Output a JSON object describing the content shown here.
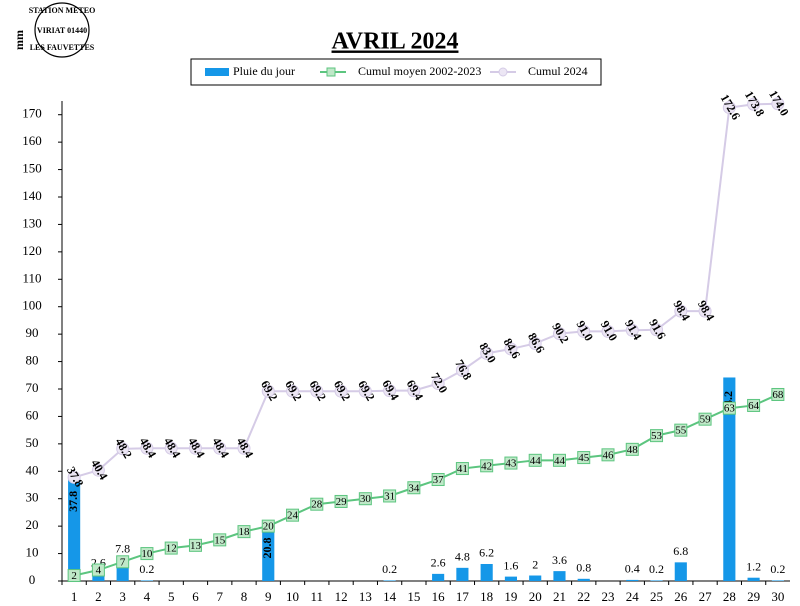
{
  "logo": {
    "lines": [
      "STATION METEO",
      "VIRIAT 01440",
      "LES FAUVETTES"
    ]
  },
  "chart_data": {
    "type": "bar-line",
    "title": "AVRIL 2024",
    "y_label": "mm",
    "categories": [
      "1",
      "2",
      "3",
      "4",
      "5",
      "6",
      "7",
      "8",
      "9",
      "10",
      "11",
      "12",
      "13",
      "14",
      "15",
      "16",
      "17",
      "18",
      "19",
      "20",
      "21",
      "22",
      "23",
      "24",
      "25",
      "26",
      "27",
      "28",
      "29",
      "30"
    ],
    "ylim": [
      0,
      175
    ],
    "yticks": [
      0,
      10,
      20,
      30,
      40,
      50,
      60,
      70,
      80,
      90,
      100,
      110,
      120,
      130,
      140,
      150,
      160,
      170
    ],
    "legend": "top",
    "series": [
      {
        "name": "Pluie du jour",
        "type": "bar",
        "color": "#1597e8",
        "values": [
          37.8,
          2.6,
          7.8,
          0.2,
          null,
          null,
          null,
          null,
          20.8,
          null,
          null,
          null,
          null,
          0.2,
          null,
          2.6,
          4.8,
          6.2,
          1.6,
          2,
          3.6,
          0.8,
          null,
          0.4,
          0.2,
          6.8,
          null,
          74.2,
          1.2,
          0.2
        ]
      },
      {
        "name": "Cumul moyen 2002-2023",
        "type": "line",
        "color": "#5cc57f",
        "marker": "square",
        "marker_fill": "#bfe8c8",
        "values": [
          2,
          4,
          7,
          10,
          12,
          13,
          15,
          18,
          20,
          24,
          28,
          29,
          30,
          31,
          34,
          37,
          41,
          42,
          43,
          44,
          44,
          45,
          46,
          48,
          53,
          55,
          59,
          63,
          64,
          68
        ]
      },
      {
        "name": "Cumul 2024",
        "type": "line",
        "color": "#d5cbe6",
        "marker": "circle",
        "marker_fill": "#ece6f4",
        "values": [
          37.8,
          40.4,
          48.2,
          48.4,
          48.4,
          48.4,
          48.4,
          48.4,
          69.2,
          69.2,
          69.2,
          69.2,
          69.2,
          69.4,
          69.4,
          72,
          76.8,
          83,
          84.6,
          86.6,
          90.2,
          91,
          91,
          91.4,
          91.6,
          98.4,
          98.4,
          172.6,
          173.8,
          174
        ],
        "value_labels": [
          "37.8",
          "40.4",
          "48.2",
          "48.4",
          "48.4",
          "48.4",
          "48.4",
          "48.4",
          "69.2",
          "69.2",
          "69.2",
          "69.2",
          "69.2",
          "69.4",
          "69.4",
          "72.0",
          "76.8",
          "83.0",
          "84.6",
          "86.6",
          "90.2",
          "91.0",
          "91.0",
          "91.4",
          "91.6",
          "98.4",
          "98.4",
          "172.6",
          "173.8",
          "174.0"
        ]
      }
    ]
  }
}
